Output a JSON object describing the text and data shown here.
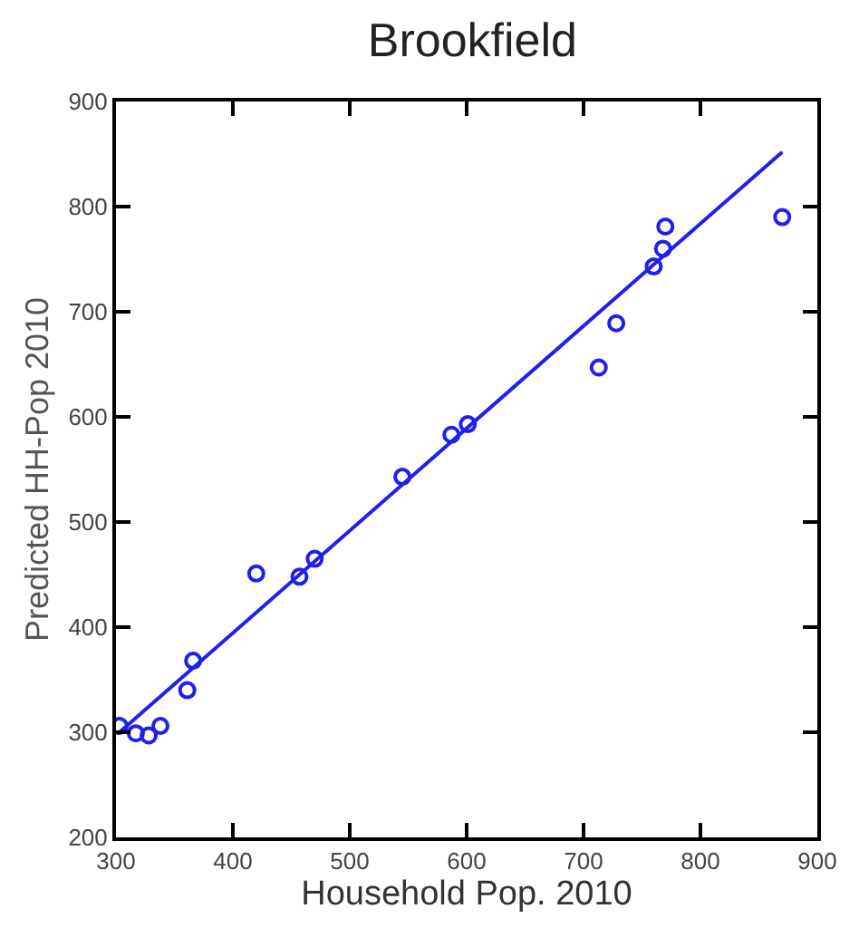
{
  "chart_data": {
    "type": "scatter",
    "title": "Brookfield",
    "xlabel": "Household Pop. 2010",
    "ylabel": "Predicted HH-Pop 2010",
    "xlim": [
      300,
      900
    ],
    "xticks": [
      300,
      400,
      500,
      600,
      700,
      800,
      900
    ],
    "ylim": [
      200,
      900
    ],
    "yticks": [
      200,
      300,
      400,
      500,
      600,
      700,
      800,
      900
    ],
    "series": [
      {
        "color": "#2020ee",
        "marker": "circle",
        "x": [
          303,
          317,
          328,
          338,
          361,
          366,
          420,
          457,
          470,
          545,
          587,
          601,
          713,
          728,
          760,
          768,
          770,
          870
        ],
        "values": [
          306,
          299,
          297,
          306,
          340,
          368,
          451,
          448,
          465,
          543,
          583,
          593,
          647,
          689,
          743,
          760,
          781,
          790
        ]
      },
      {
        "type": "line",
        "color": "#2020ee",
        "x": [
          303,
          870
        ],
        "values": [
          300,
          852
        ]
      }
    ]
  }
}
